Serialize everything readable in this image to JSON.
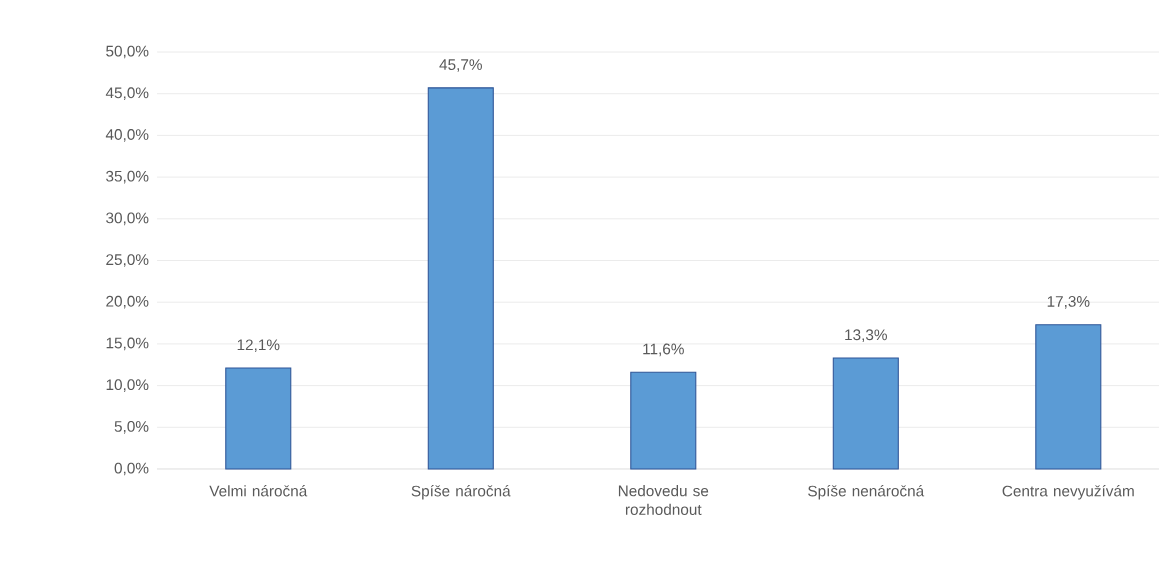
{
  "chart_data": {
    "type": "bar",
    "categories": [
      "Velmi náročná",
      "Spíše náročná",
      "Nedovedu se rozhodnout",
      "Spíše nenáročná",
      "Centra nevyužívám"
    ],
    "values": [
      12.1,
      45.7,
      11.6,
      13.3,
      17.3
    ],
    "value_labels": [
      "12,1%",
      "45,7%",
      "11,6%",
      "13,3%",
      "17,3%"
    ],
    "color": "#5b9bd5",
    "ylim": [
      0,
      50
    ],
    "yticks": [
      {
        "value": 0,
        "label": "0,0%"
      },
      {
        "value": 5,
        "label": "5,0%"
      },
      {
        "value": 10,
        "label": "10,0%"
      },
      {
        "value": 15,
        "label": "15,0%"
      },
      {
        "value": 20,
        "label": "20,0%"
      },
      {
        "value": 25,
        "label": "25,0%"
      },
      {
        "value": 30,
        "label": "30,0%"
      },
      {
        "value": 35,
        "label": "35,0%"
      },
      {
        "value": 40,
        "label": "40,0%"
      },
      {
        "value": 45,
        "label": "45,0%"
      },
      {
        "value": 50,
        "label": "50,0%"
      }
    ],
    "grid": "y"
  }
}
